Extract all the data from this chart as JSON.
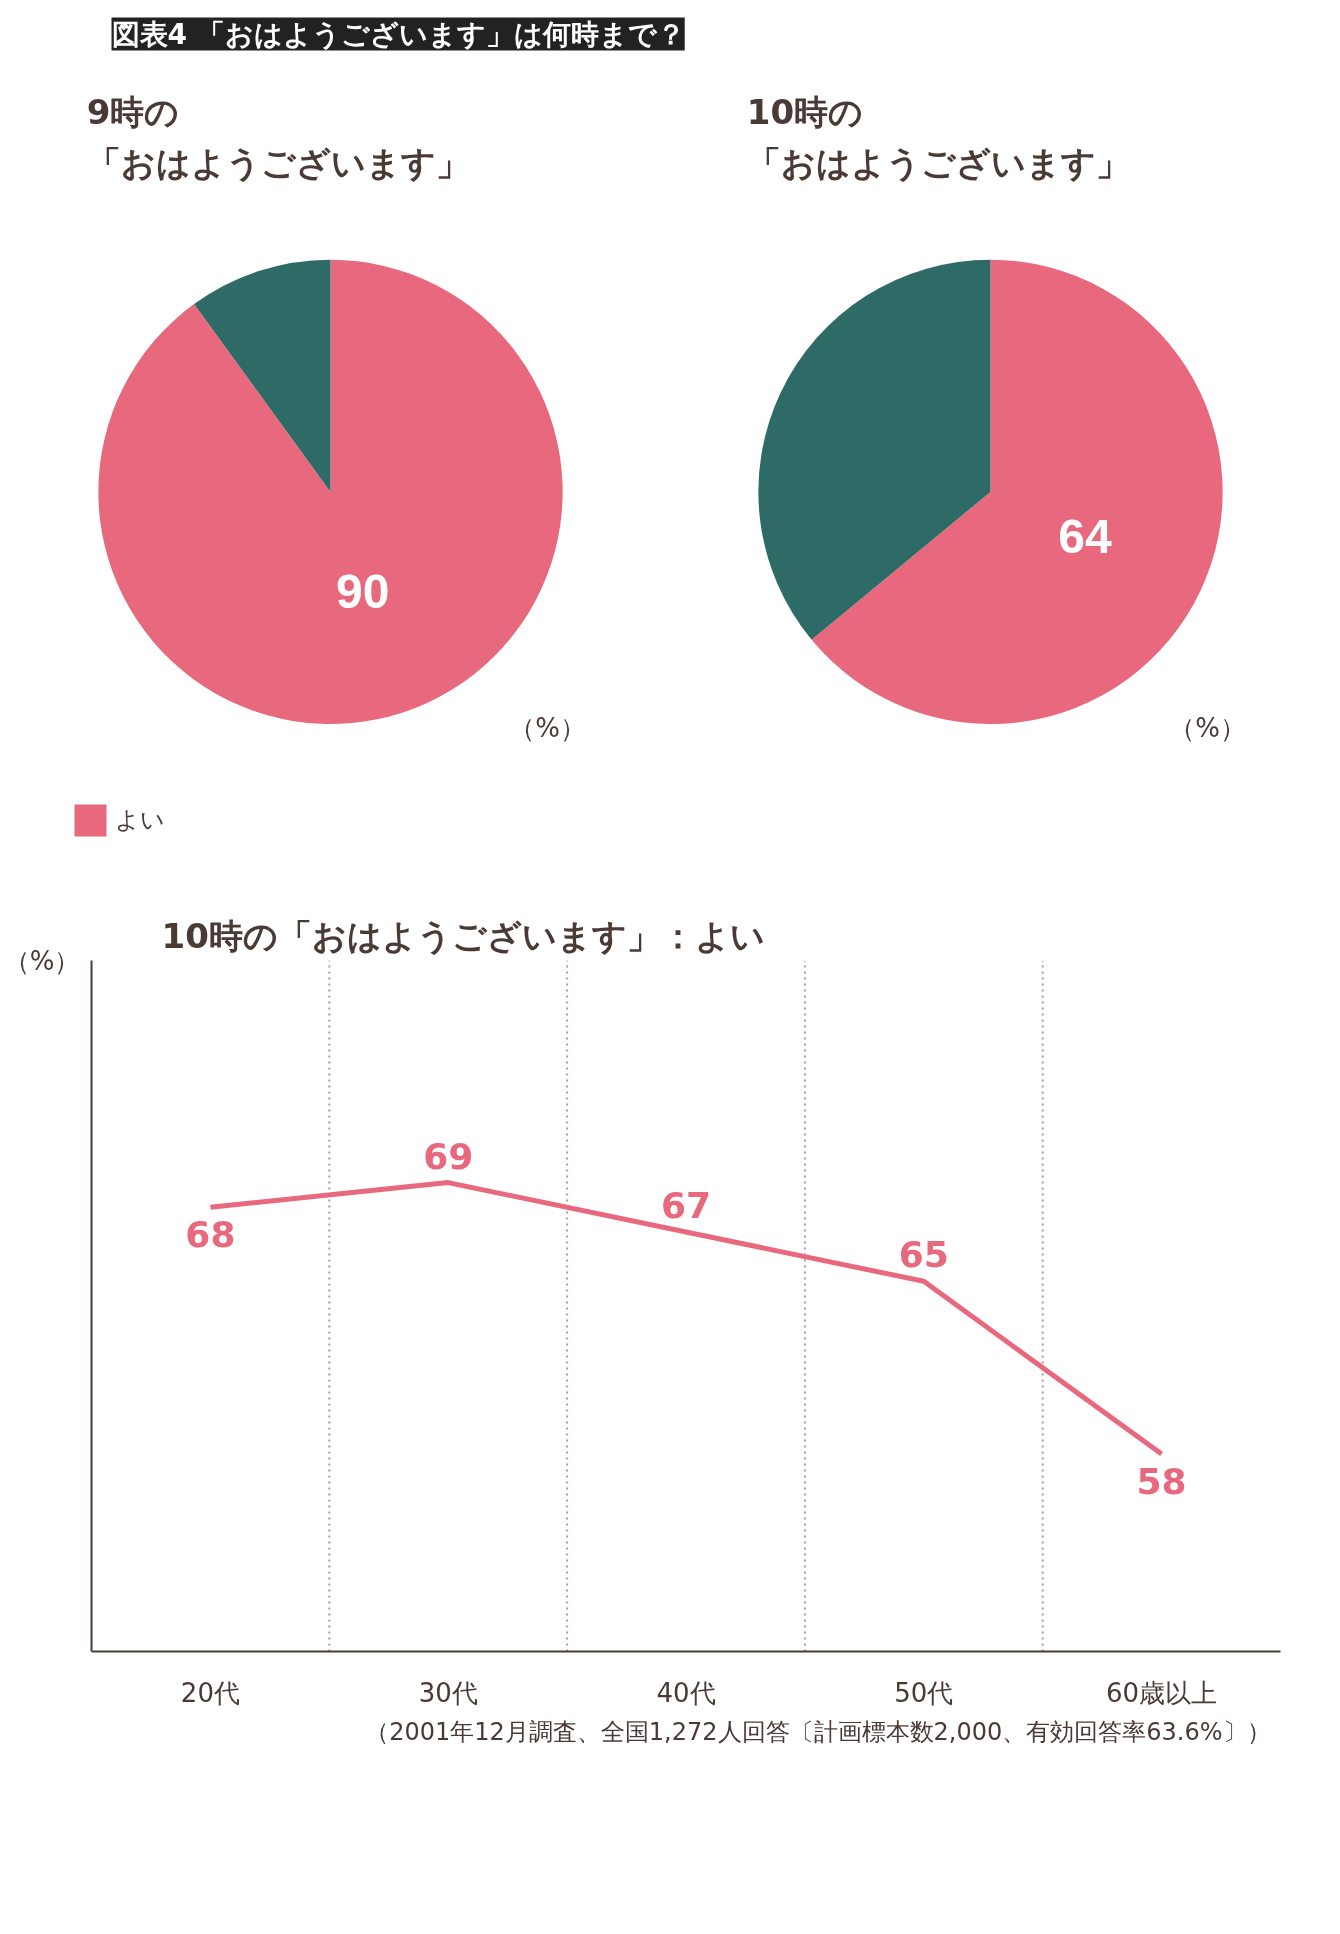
{
  "chart_data": [
    {
      "type": "pie",
      "title": "9時の「おはようございます」",
      "categories": [
        "よい",
        null
      ],
      "values": [
        90,
        10
      ],
      "colors": [
        "#e8687e",
        "#2e6b66"
      ],
      "value_labels": [
        "90",
        null
      ],
      "legend": "bottom",
      "annotations": [
        "図表4 「おはようございます」は何時まで？",
        "（%）"
      ]
    },
    {
      "type": "pie",
      "title": "10時の「おはようございます」",
      "categories": [
        null,
        null
      ],
      "values": [
        64,
        36
      ],
      "colors": [
        "#e8687e",
        "#2e6b66"
      ],
      "value_labels": [
        "64",
        null
      ],
      "annotations": [
        "（%）"
      ]
    },
    {
      "type": "line",
      "title": "10時の「おはようございます」：よい",
      "ylabel": "（%）",
      "categories": [
        "20代",
        "30代",
        "40代",
        "50代",
        "60歳以上"
      ],
      "series": [
        {
          "color": "#e8687e",
          "values": [
            68,
            69,
            67,
            65,
            58
          ]
        }
      ],
      "ylim": [
        50,
        78
      ],
      "tick_labels": "x",
      "data_labels": true,
      "grid": "x",
      "marker": "none",
      "line_style": "solid",
      "annotations": [
        "（2001年12月調査、全国1,272人回答〔計画標本数2,000、有効回答率63.6%〕）"
      ]
    }
  ]
}
